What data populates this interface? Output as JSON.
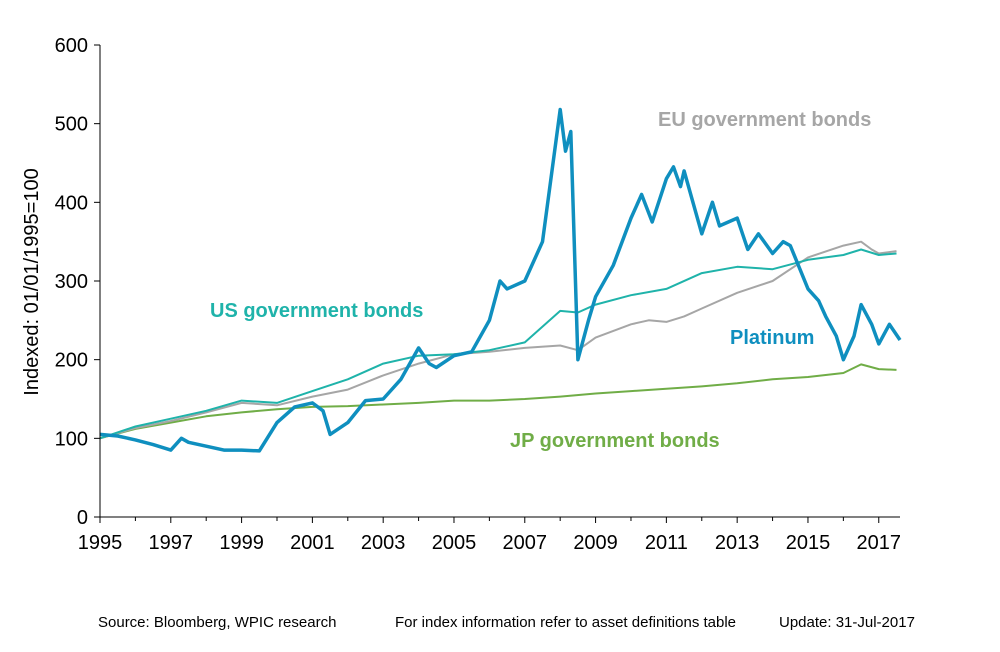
{
  "chart_data": {
    "type": "line",
    "title": "",
    "xlabel": "",
    "ylabel": "Indexed: 01/01/1995=100",
    "xlim": [
      1995,
      2017.6
    ],
    "ylim": [
      0,
      600
    ],
    "x_ticks": [
      "1995",
      "1997",
      "1999",
      "2001",
      "2003",
      "2005",
      "2007",
      "2009",
      "2011",
      "2013",
      "2015",
      "2017"
    ],
    "y_ticks": [
      "0",
      "100",
      "200",
      "300",
      "400",
      "500",
      "600"
    ],
    "grid": false,
    "legend": "direct labels",
    "series": [
      {
        "name": "EU government bonds",
        "color": "#a6a6a6",
        "x": [
          1995,
          1996,
          1997,
          1998,
          1999,
          2000,
          2001,
          2002,
          2003,
          2004,
          2005,
          2006,
          2007,
          2008,
          2008.5,
          2009,
          2010,
          2010.5,
          2011,
          2011.5,
          2012,
          2013,
          2014,
          2015,
          2016,
          2016.5,
          2016.8,
          2017,
          2017.5
        ],
        "values": [
          100,
          113,
          122,
          133,
          145,
          142,
          153,
          162,
          180,
          195,
          207,
          210,
          215,
          218,
          212,
          228,
          245,
          250,
          248,
          255,
          265,
          285,
          300,
          330,
          345,
          350,
          340,
          335,
          338
        ]
      },
      {
        "name": "US government bonds",
        "color": "#1fb3aa",
        "x": [
          1995,
          1996,
          1997,
          1998,
          1999,
          2000,
          2001,
          2002,
          2003,
          2004,
          2005,
          2006,
          2007,
          2008,
          2008.5,
          2009,
          2010,
          2011,
          2012,
          2013,
          2014,
          2015,
          2016,
          2016.5,
          2017,
          2017.5
        ],
        "values": [
          100,
          115,
          125,
          135,
          148,
          145,
          160,
          175,
          195,
          205,
          207,
          212,
          222,
          262,
          260,
          270,
          282,
          290,
          310,
          318,
          315,
          327,
          333,
          340,
          333,
          335
        ]
      },
      {
        "name": "JP government bonds",
        "color": "#70ad47",
        "x": [
          1995,
          1996,
          1997,
          1998,
          1999,
          2000,
          2001,
          2002,
          2003,
          2004,
          2005,
          2006,
          2007,
          2008,
          2009,
          2010,
          2011,
          2012,
          2013,
          2014,
          2015,
          2016,
          2016.5,
          2017,
          2017.5
        ],
        "values": [
          100,
          112,
          120,
          128,
          133,
          137,
          140,
          141,
          143,
          145,
          148,
          148,
          150,
          153,
          157,
          160,
          163,
          166,
          170,
          175,
          178,
          183,
          194,
          188,
          187
        ]
      },
      {
        "name": "Platinum",
        "color": "#0f8fbf",
        "x": [
          1995,
          1995.5,
          1996,
          1996.5,
          1997,
          1997.3,
          1997.5,
          1998,
          1998.5,
          1999,
          1999.5,
          2000,
          2000.5,
          2001,
          2001.3,
          2001.5,
          2002,
          2002.5,
          2003,
          2003.5,
          2004,
          2004.3,
          2004.5,
          2005,
          2005.5,
          2006,
          2006.3,
          2006.5,
          2007,
          2007.5,
          2008,
          2008.15,
          2008.3,
          2008.5,
          2008.8,
          2009,
          2009.5,
          2010,
          2010.3,
          2010.6,
          2011,
          2011.2,
          2011.4,
          2011.5,
          2012,
          2012.3,
          2012.5,
          2013,
          2013.3,
          2013.6,
          2014,
          2014.3,
          2014.5,
          2015,
          2015.3,
          2015.5,
          2015.8,
          2016,
          2016.3,
          2016.5,
          2016.8,
          2017,
          2017.3,
          2017.6
        ],
        "values": [
          105,
          103,
          98,
          92,
          85,
          100,
          95,
          90,
          85,
          85,
          84,
          120,
          140,
          145,
          135,
          105,
          120,
          148,
          150,
          175,
          215,
          195,
          190,
          205,
          210,
          250,
          300,
          290,
          300,
          350,
          518,
          465,
          490,
          200,
          250,
          280,
          320,
          380,
          410,
          375,
          430,
          445,
          420,
          440,
          360,
          400,
          370,
          380,
          340,
          360,
          335,
          350,
          345,
          290,
          275,
          255,
          230,
          200,
          230,
          270,
          245,
          220,
          245,
          225
        ]
      }
    ],
    "annotations": {
      "eu_label": "EU government bonds",
      "us_label": "US government bonds",
      "jp_label": "JP government bonds",
      "platinum_label": "Platinum"
    }
  },
  "footer": {
    "source": "Source: Bloomberg, WPIC research",
    "note": "For index information refer to asset definitions table",
    "update": "Update: 31-Jul-2017"
  }
}
